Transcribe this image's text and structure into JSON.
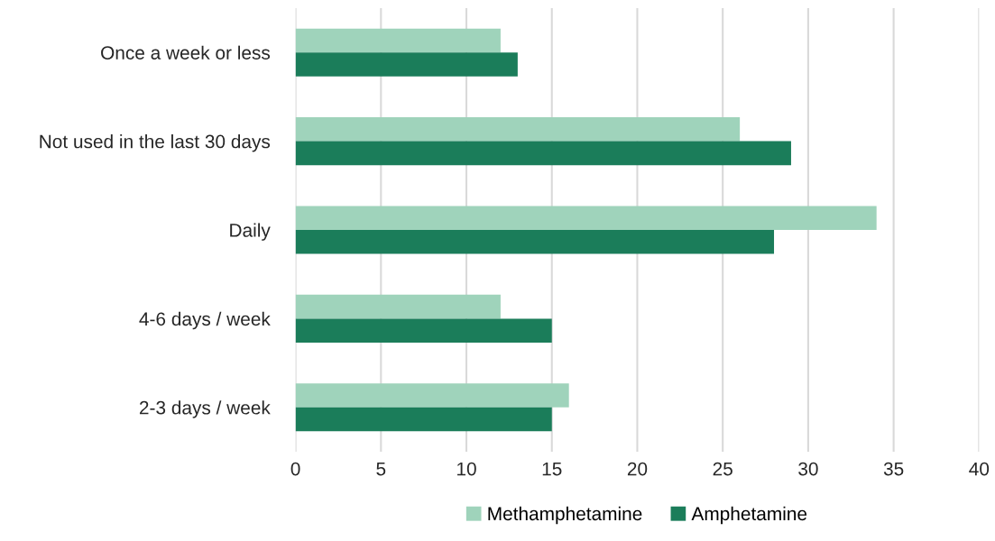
{
  "chart_data": {
    "type": "bar",
    "orientation": "horizontal",
    "categories": [
      "Once a week or less",
      "Not used in the last 30 days",
      "Daily",
      "4-6 days / week",
      "2-3 days / week"
    ],
    "series": [
      {
        "name": "Methamphetamine",
        "color": "#9fd3bb",
        "values": [
          12,
          26,
          34,
          12,
          16
        ]
      },
      {
        "name": "Amphetamine",
        "color": "#1b7d5a",
        "values": [
          13,
          29,
          28,
          15,
          15
        ]
      }
    ],
    "xlim": [
      0,
      40
    ],
    "xticks": [
      0,
      5,
      10,
      15,
      20,
      25,
      30,
      35,
      40
    ],
    "grid": "x",
    "legend": "bottom"
  }
}
